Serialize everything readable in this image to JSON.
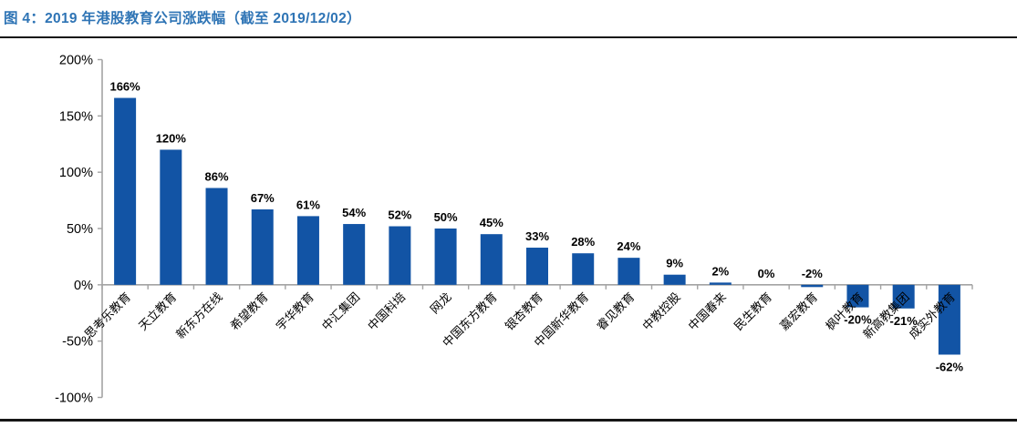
{
  "header": {
    "title": "图 4：2019 年港股教育公司涨跌幅（截至 2019/12/02）"
  },
  "chart_data": {
    "type": "bar",
    "title": "2019 年港股教育公司涨跌幅（截至 2019/12/02）",
    "categories": [
      "思考乐教育",
      "天立教育",
      "新东方在线",
      "希望教育",
      "宇华教育",
      "中汇集团",
      "中国科培",
      "网龙",
      "中国东方教育",
      "银杏教育",
      "中国新华教育",
      "睿见教育",
      "中教控股",
      "中国春来",
      "民生教育",
      "嘉宏教育",
      "枫叶教育",
      "新高教集团",
      "成实外教育"
    ],
    "values": [
      166,
      120,
      86,
      67,
      61,
      54,
      52,
      50,
      45,
      33,
      28,
      24,
      9,
      2,
      0,
      -2,
      -20,
      -21,
      -62
    ],
    "data_labels": [
      "166%",
      "120%",
      "86%",
      "67%",
      "61%",
      "54%",
      "52%",
      "50%",
      "45%",
      "33%",
      "28%",
      "24%",
      "9%",
      "2%",
      "0%",
      "-2%",
      "-20%",
      "-21%",
      "-62%"
    ],
    "xlabel": "",
    "ylabel": "",
    "ylim": [
      -100,
      200
    ],
    "yticks": [
      200,
      150,
      100,
      50,
      0,
      -50,
      -100
    ],
    "ytick_labels": [
      "200%",
      "150%",
      "100%",
      "50%",
      "0%",
      "-50%",
      "-100%"
    ],
    "grid": false,
    "legend": false,
    "x_axis_tick_marks": "between-categories",
    "bar_color": "#1254A5",
    "axis_color": "#A3A3A3",
    "label_color": "#000000",
    "title_color": "#2E74B5"
  }
}
